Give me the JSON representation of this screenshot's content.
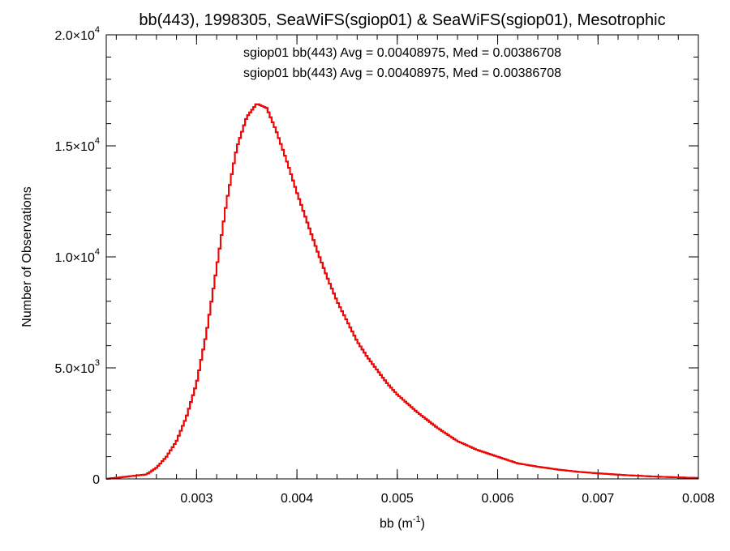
{
  "chart_data": {
    "type": "histogram-step",
    "title": "bb(443), 1998305, SeaWiFS(sgiop01) & SeaWiFS(sgiop01), Mesotrophic",
    "xlabel": "bb (m",
    "xlabel_sup": "-1",
    "xlabel_end": ")",
    "ylabel": "Number of Observations",
    "xlim": [
      0.0021,
      0.008
    ],
    "ylim": [
      0,
      20000
    ],
    "x_ticks": [
      {
        "value": 0.003,
        "label": "0.003"
      },
      {
        "value": 0.004,
        "label": "0.004"
      },
      {
        "value": 0.005,
        "label": "0.005"
      },
      {
        "value": 0.006,
        "label": "0.006"
      },
      {
        "value": 0.007,
        "label": "0.007"
      },
      {
        "value": 0.008,
        "label": "0.008"
      }
    ],
    "y_ticks": [
      {
        "value": 0,
        "mantissa": "0",
        "exp": ""
      },
      {
        "value": 5000,
        "mantissa": "5.0×10",
        "exp": "3"
      },
      {
        "value": 10000,
        "mantissa": "1.0×10",
        "exp": "4"
      },
      {
        "value": 15000,
        "mantissa": "1.5×10",
        "exp": "4"
      },
      {
        "value": 20000,
        "mantissa": "2.0×10",
        "exp": "4"
      }
    ],
    "x_minor_step": 0.0002,
    "y_minor_step": 1000,
    "annotations": [
      {
        "text": "sgiop01 bb(443) Avg = 0.00408975, Med = 0.00386708",
        "color": "#000000"
      },
      {
        "text": "sgiop01 bb(443) Avg = 0.00408975, Med = 0.00386708",
        "color": "#ff0000"
      }
    ],
    "series": [
      {
        "color": "#000000",
        "x": [
          0.0021,
          0.0025,
          0.0026,
          0.0027,
          0.0028,
          0.0029,
          0.003,
          0.0031,
          0.0032,
          0.0033,
          0.0034,
          0.0035,
          0.0036,
          0.0037,
          0.0038,
          0.0039,
          0.004,
          0.0041,
          0.0042,
          0.0043,
          0.0044,
          0.0045,
          0.0046,
          0.0047,
          0.0048,
          0.0049,
          0.005,
          0.0052,
          0.0054,
          0.0056,
          0.0058,
          0.006,
          0.0062,
          0.0064,
          0.0066,
          0.0068,
          0.007,
          0.0072,
          0.0074,
          0.0076,
          0.0078,
          0.008
        ],
        "y": [
          0,
          200,
          500,
          1000,
          1700,
          2800,
          4300,
          6600,
          9500,
          12500,
          14900,
          16300,
          16900,
          16700,
          15600,
          14300,
          12900,
          11600,
          10300,
          9100,
          8000,
          7100,
          6200,
          5500,
          4900,
          4300,
          3800,
          3000,
          2300,
          1700,
          1300,
          1000,
          700,
          550,
          420,
          320,
          250,
          190,
          140,
          100,
          70,
          40
        ]
      },
      {
        "color": "#ff0000",
        "x": [
          0.0021,
          0.0025,
          0.0026,
          0.0027,
          0.0028,
          0.0029,
          0.003,
          0.0031,
          0.0032,
          0.0033,
          0.0034,
          0.0035,
          0.0036,
          0.0037,
          0.0038,
          0.0039,
          0.004,
          0.0041,
          0.0042,
          0.0043,
          0.0044,
          0.0045,
          0.0046,
          0.0047,
          0.0048,
          0.0049,
          0.005,
          0.0052,
          0.0054,
          0.0056,
          0.0058,
          0.006,
          0.0062,
          0.0064,
          0.0066,
          0.0068,
          0.007,
          0.0072,
          0.0074,
          0.0076,
          0.0078,
          0.008
        ],
        "y": [
          0,
          200,
          500,
          1000,
          1700,
          2800,
          4300,
          6600,
          9500,
          12500,
          14900,
          16300,
          16900,
          16700,
          15600,
          14300,
          12900,
          11600,
          10300,
          9100,
          8000,
          7100,
          6200,
          5500,
          4900,
          4300,
          3800,
          3000,
          2300,
          1700,
          1300,
          1000,
          700,
          550,
          420,
          320,
          250,
          190,
          140,
          100,
          70,
          40
        ]
      }
    ]
  }
}
